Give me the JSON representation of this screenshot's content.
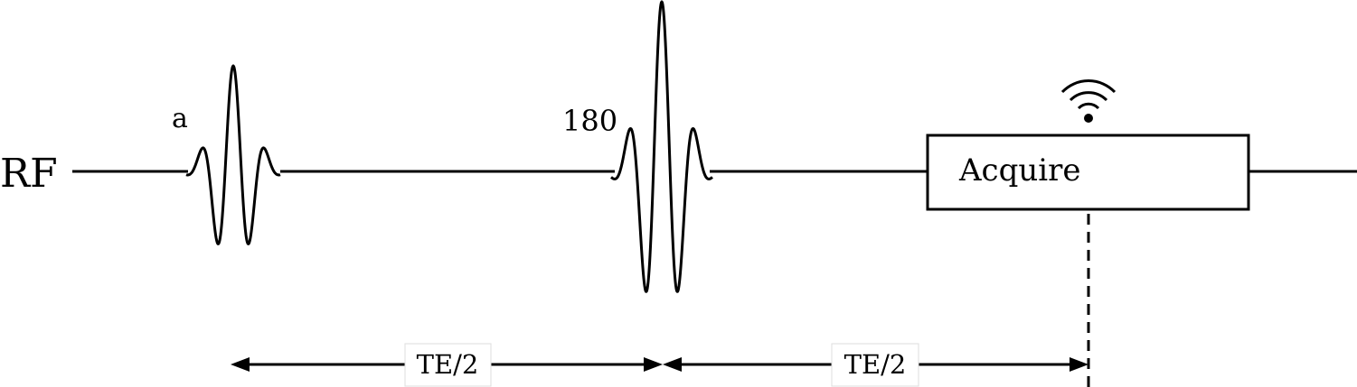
{
  "diagram": {
    "rf_label": "RF",
    "pulse1_label": "a",
    "pulse2_label": "180",
    "acquire_label": "Acquire",
    "interval1_label": "TE/2",
    "interval2_label": "TE/2",
    "signal_icon": "wifi-signal-icon",
    "line_color": "#000000"
  }
}
